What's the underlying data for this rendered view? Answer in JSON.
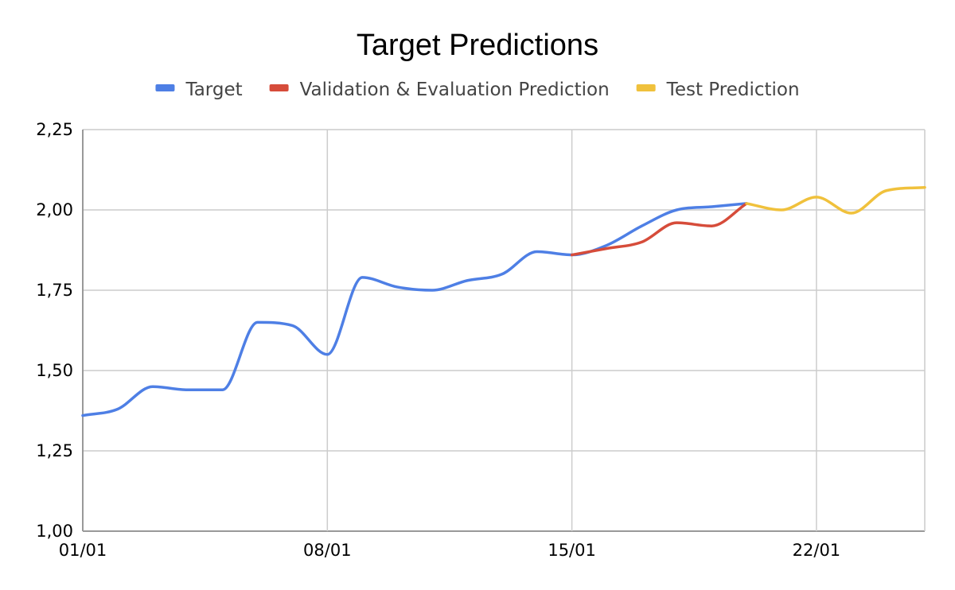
{
  "chart_data": {
    "type": "line",
    "title": "Target Predictions",
    "xlabel": "",
    "ylabel": "",
    "x_ticks": [
      {
        "label": "01/01",
        "day": 1
      },
      {
        "label": "08/01",
        "day": 8
      },
      {
        "label": "15/01",
        "day": 15
      },
      {
        "label": "22/01",
        "day": 22
      }
    ],
    "xlim": [
      1,
      25.1
    ],
    "ylim": [
      1.0,
      2.25
    ],
    "y_ticks": [
      {
        "label": "1,00",
        "value": 1.0
      },
      {
        "label": "1,25",
        "value": 1.25
      },
      {
        "label": "1,50",
        "value": 1.5
      },
      {
        "label": "1,75",
        "value": 1.75
      },
      {
        "label": "2,00",
        "value": 2.0
      },
      {
        "label": "2,25",
        "value": 2.25
      }
    ],
    "grid": true,
    "legend_position": "top",
    "series": [
      {
        "name": "Target",
        "color": "#4e7fe5",
        "points": [
          [
            1,
            1.36
          ],
          [
            2,
            1.38
          ],
          [
            3,
            1.45
          ],
          [
            4,
            1.44
          ],
          [
            5,
            1.44
          ],
          [
            6,
            1.65
          ],
          [
            7,
            1.64
          ],
          [
            8,
            1.55
          ],
          [
            9,
            1.79
          ],
          [
            10,
            1.76
          ],
          [
            11,
            1.75
          ],
          [
            12,
            1.78
          ],
          [
            13,
            1.8
          ],
          [
            14,
            1.87
          ],
          [
            15,
            1.86
          ],
          [
            16,
            1.89
          ],
          [
            17,
            1.95
          ],
          [
            18,
            2.0
          ],
          [
            19,
            2.01
          ],
          [
            20,
            2.02
          ]
        ]
      },
      {
        "name": "Validation & Evaluation Prediction",
        "color": "#d64c3a",
        "points": [
          [
            15,
            1.86
          ],
          [
            16,
            1.88
          ],
          [
            17,
            1.9
          ],
          [
            18,
            1.96
          ],
          [
            19,
            1.95
          ],
          [
            20,
            2.02
          ]
        ]
      },
      {
        "name": "Test Prediction",
        "color": "#f0c13c",
        "points": [
          [
            20,
            2.02
          ],
          [
            21,
            2.0
          ],
          [
            22,
            2.04
          ],
          [
            23,
            1.99
          ],
          [
            24,
            2.06
          ],
          [
            25.1,
            2.07
          ]
        ]
      }
    ]
  }
}
